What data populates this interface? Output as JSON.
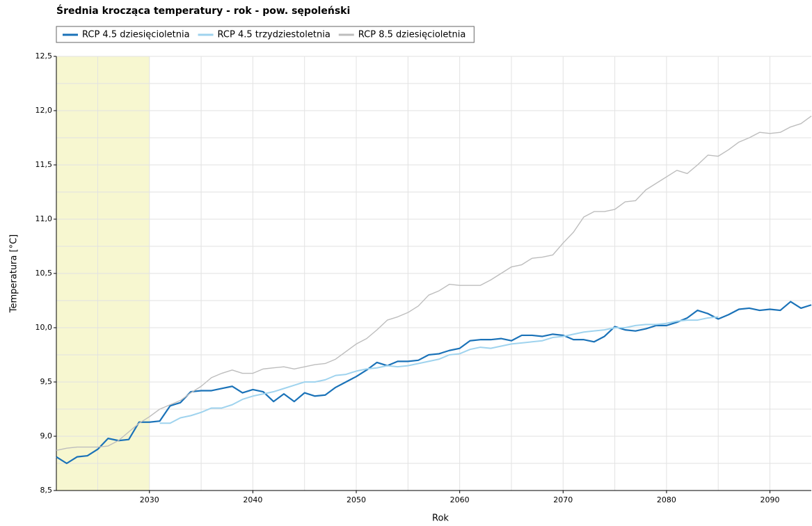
{
  "chart_data": {
    "type": "line",
    "title": "Średnia krocząca temperatury - rok - pow. sępoleński",
    "x_label": "Rok",
    "y_label": "Temperatura [°C]",
    "x": [
      2021,
      2022,
      2023,
      2024,
      2025,
      2026,
      2027,
      2028,
      2029,
      2030,
      2031,
      2032,
      2033,
      2034,
      2035,
      2036,
      2037,
      2038,
      2039,
      2040,
      2041,
      2042,
      2043,
      2044,
      2045,
      2046,
      2047,
      2048,
      2049,
      2050,
      2051,
      2052,
      2053,
      2054,
      2055,
      2056,
      2057,
      2058,
      2059,
      2060,
      2061,
      2062,
      2063,
      2064,
      2065,
      2066,
      2067,
      2068,
      2069,
      2070,
      2071,
      2072,
      2073,
      2074,
      2075,
      2076,
      2077,
      2078,
      2079,
      2080,
      2081,
      2082,
      2083,
      2084,
      2085,
      2086,
      2087,
      2088,
      2089,
      2090,
      2091,
      2092,
      2093,
      2094
    ],
    "series": [
      {
        "name": "RCP 4.5 dziesięcioletnia",
        "color": "#1a72b8",
        "width": 2.2,
        "values": [
          8.81,
          8.75,
          8.81,
          8.82,
          8.88,
          8.98,
          8.96,
          8.97,
          9.13,
          9.13,
          9.14,
          9.28,
          9.31,
          9.41,
          9.42,
          9.42,
          9.44,
          9.46,
          9.4,
          9.43,
          9.41,
          9.32,
          9.39,
          9.32,
          9.4,
          9.37,
          9.38,
          9.45,
          9.5,
          9.55,
          9.61,
          9.68,
          9.65,
          9.69,
          9.69,
          9.7,
          9.75,
          9.76,
          9.79,
          9.81,
          9.88,
          9.89,
          9.89,
          9.9,
          9.88,
          9.93,
          9.93,
          9.92,
          9.94,
          9.93,
          9.89,
          9.89,
          9.87,
          9.92,
          10.01,
          9.98,
          9.97,
          9.99,
          10.02,
          10.02,
          10.05,
          10.09,
          10.16,
          10.13,
          10.08,
          10.12,
          10.17,
          10.18,
          10.16,
          10.17,
          10.16,
          10.24,
          10.18,
          10.21
        ]
      },
      {
        "name": "RCP 4.5 trzydziestoletnia",
        "color": "#9fd3ee",
        "width": 2,
        "values": [
          null,
          null,
          null,
          null,
          null,
          null,
          null,
          null,
          null,
          null,
          9.12,
          9.12,
          9.17,
          9.19,
          9.22,
          9.26,
          9.26,
          9.29,
          9.34,
          9.37,
          9.39,
          9.41,
          9.44,
          9.47,
          9.5,
          9.5,
          9.52,
          9.56,
          9.57,
          9.6,
          9.62,
          9.63,
          9.65,
          9.64,
          9.65,
          9.67,
          9.69,
          9.71,
          9.75,
          9.76,
          9.8,
          9.82,
          9.81,
          9.83,
          9.85,
          9.86,
          9.87,
          9.88,
          9.91,
          9.92,
          9.94,
          9.96,
          9.97,
          9.98,
          10.0,
          10.0,
          10.02,
          10.03,
          10.03,
          10.04,
          10.06,
          10.07,
          10.07,
          10.09,
          10.1,
          null,
          null,
          null,
          null,
          null,
          null,
          null,
          null,
          null
        ]
      },
      {
        "name": "RCP 8.5 dziesięcioletnia",
        "color": "#bdbdbd",
        "width": 1.4,
        "values": [
          8.87,
          8.89,
          8.9,
          8.9,
          8.9,
          8.91,
          8.96,
          9.04,
          9.12,
          9.18,
          9.25,
          9.29,
          9.33,
          9.4,
          9.46,
          9.54,
          9.58,
          9.61,
          9.58,
          9.58,
          9.62,
          9.63,
          9.64,
          9.62,
          9.64,
          9.66,
          9.67,
          9.71,
          9.78,
          9.85,
          9.9,
          9.98,
          10.07,
          10.1,
          10.14,
          10.2,
          10.3,
          10.34,
          10.4,
          10.39,
          10.39,
          10.39,
          10.44,
          10.5,
          10.56,
          10.58,
          10.64,
          10.65,
          10.67,
          10.78,
          10.88,
          11.02,
          11.07,
          11.07,
          11.09,
          11.16,
          11.17,
          11.27,
          11.33,
          11.39,
          11.45,
          11.42,
          11.5,
          11.59,
          11.58,
          11.64,
          11.71,
          11.75,
          11.8,
          11.79,
          11.8,
          11.85,
          11.88,
          11.95
        ]
      }
    ],
    "xlim": [
      2021,
      2094
    ],
    "ylim": [
      8.5,
      12.5
    ],
    "xticks": [
      2030,
      2040,
      2050,
      2060,
      2070,
      2080,
      2090
    ],
    "xgrid_minor": [
      2025,
      2035,
      2045,
      2055,
      2065,
      2075,
      2085
    ],
    "yticks": [
      {
        "value": 8.5,
        "label": "8,5"
      },
      {
        "value": 9.0,
        "label": "9,0"
      },
      {
        "value": 9.5,
        "label": "9,5"
      },
      {
        "value": 10.0,
        "label": "10,0"
      },
      {
        "value": 10.5,
        "label": "10,5"
      },
      {
        "value": 11.0,
        "label": "11,0"
      },
      {
        "value": 11.5,
        "label": "11,5"
      },
      {
        "value": 12.0,
        "label": "12,0"
      },
      {
        "value": 12.5,
        "label": "12,5"
      }
    ],
    "ygrid_minor": [
      8.75,
      9.25,
      9.75,
      10.25,
      10.75,
      11.25,
      11.75,
      12.25
    ],
    "highlight": {
      "range": [
        2021,
        2030
      ],
      "color": "#f7f7d0"
    },
    "grid": true,
    "legend": "top"
  }
}
